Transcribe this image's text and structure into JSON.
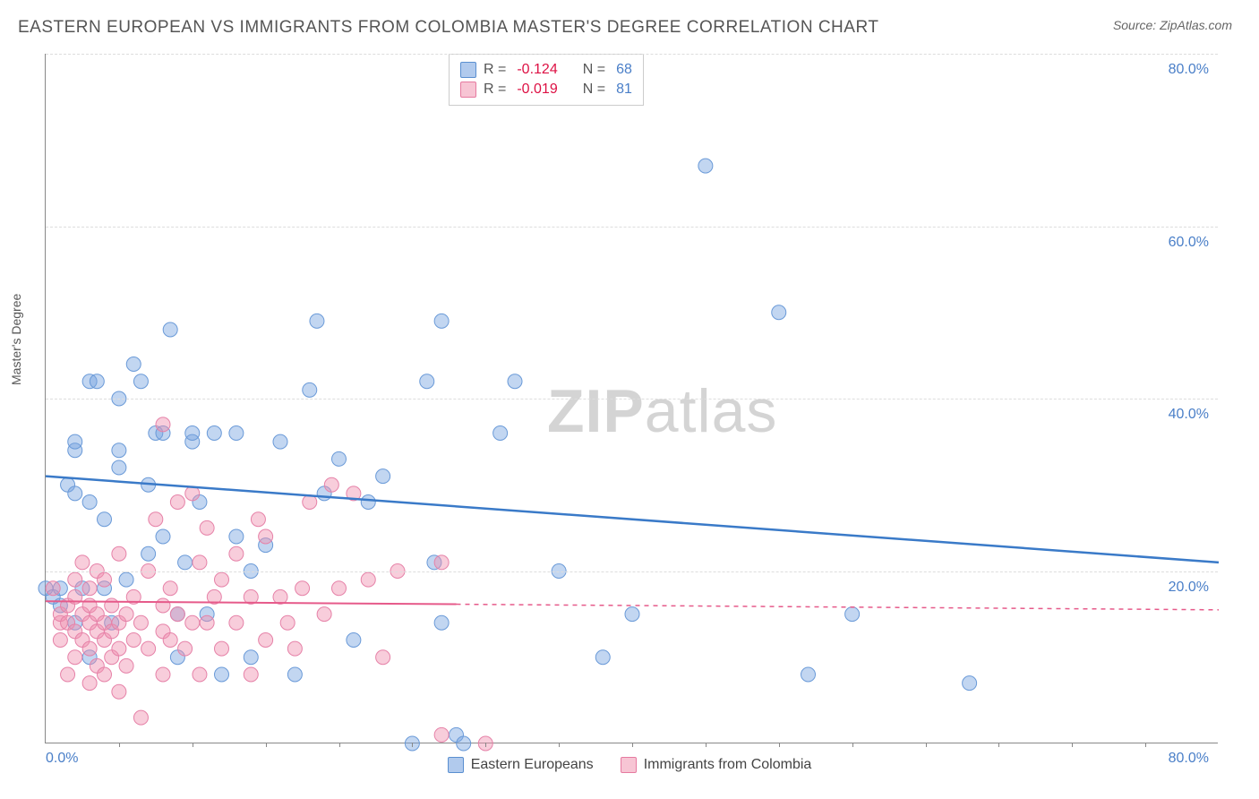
{
  "header": {
    "title": "EASTERN EUROPEAN VS IMMIGRANTS FROM COLOMBIA MASTER'S DEGREE CORRELATION CHART",
    "source_prefix": "Source: ",
    "source": "ZipAtlas.com"
  },
  "chart": {
    "type": "scatter",
    "ylabel": "Master's Degree",
    "xlim": [
      0,
      80
    ],
    "ylim": [
      0,
      80
    ],
    "xtick_labels": {
      "min": "0.0%",
      "max": "80.0%"
    },
    "ytick_labels": [
      "20.0%",
      "40.0%",
      "60.0%",
      "80.0%"
    ],
    "ytick_vals": [
      20,
      40,
      60,
      80
    ],
    "grid_color": "#dddddd",
    "background_color": "#ffffff",
    "axis_color": "#888888",
    "tick_color": "#4a7fc8",
    "watermark": {
      "text_bold": "ZIP",
      "text_rest": "atlas",
      "color": "#aaaaaa",
      "fontsize": 68
    },
    "series": [
      {
        "name": "Eastern Europeans",
        "color_fill": "rgba(120,165,225,0.45)",
        "color_stroke": "#6a9ad8",
        "trend": {
          "x1": 0,
          "y1": 31,
          "x2": 80,
          "y2": 21,
          "color": "#3a7ac8",
          "width": 2.5,
          "dashed": false,
          "solidExtent": 80
        },
        "marker_r": 8,
        "points": [
          [
            0,
            18
          ],
          [
            0.5,
            17
          ],
          [
            1,
            16
          ],
          [
            1,
            18
          ],
          [
            1.5,
            30
          ],
          [
            2,
            14
          ],
          [
            2,
            29
          ],
          [
            2,
            34
          ],
          [
            2,
            35
          ],
          [
            2.5,
            18
          ],
          [
            3,
            10
          ],
          [
            3,
            28
          ],
          [
            3,
            42
          ],
          [
            3.5,
            42
          ],
          [
            4,
            18
          ],
          [
            4,
            26
          ],
          [
            4.5,
            14
          ],
          [
            5,
            32
          ],
          [
            5,
            34
          ],
          [
            5,
            40
          ],
          [
            5.5,
            19
          ],
          [
            6,
            44
          ],
          [
            6.5,
            42
          ],
          [
            7,
            22
          ],
          [
            7,
            30
          ],
          [
            7.5,
            36
          ],
          [
            8,
            24
          ],
          [
            8,
            36
          ],
          [
            8.5,
            48
          ],
          [
            9,
            10
          ],
          [
            9,
            15
          ],
          [
            9.5,
            21
          ],
          [
            10,
            35
          ],
          [
            10,
            36
          ],
          [
            10.5,
            28
          ],
          [
            11,
            15
          ],
          [
            11.5,
            36
          ],
          [
            12,
            8
          ],
          [
            13,
            24
          ],
          [
            13,
            36
          ],
          [
            14,
            10
          ],
          [
            14,
            20
          ],
          [
            15,
            23
          ],
          [
            16,
            35
          ],
          [
            17,
            8
          ],
          [
            18,
            41
          ],
          [
            18.5,
            49
          ],
          [
            19,
            29
          ],
          [
            20,
            33
          ],
          [
            21,
            12
          ],
          [
            22,
            28
          ],
          [
            23,
            31
          ],
          [
            25,
            0
          ],
          [
            26,
            42
          ],
          [
            26.5,
            21
          ],
          [
            27,
            14
          ],
          [
            27,
            49
          ],
          [
            28,
            1
          ],
          [
            28.5,
            0
          ],
          [
            31,
            36
          ],
          [
            32,
            42
          ],
          [
            35,
            20
          ],
          [
            38,
            10
          ],
          [
            40,
            15
          ],
          [
            45,
            67
          ],
          [
            50,
            50
          ],
          [
            52,
            8
          ],
          [
            55,
            15
          ],
          [
            63,
            7
          ]
        ]
      },
      {
        "name": "Immigrants from Colombia",
        "color_fill": "rgba(240,145,175,0.45)",
        "color_stroke": "#e682a8",
        "trend": {
          "x1": 0,
          "y1": 16.5,
          "x2": 80,
          "y2": 15.5,
          "color": "#e65a8a",
          "width": 2,
          "dashed": true,
          "solidExtent": 28
        },
        "marker_r": 8,
        "points": [
          [
            0.5,
            18
          ],
          [
            1,
            12
          ],
          [
            1,
            14
          ],
          [
            1,
            15
          ],
          [
            1.5,
            8
          ],
          [
            1.5,
            14
          ],
          [
            1.5,
            16
          ],
          [
            2,
            10
          ],
          [
            2,
            13
          ],
          [
            2,
            17
          ],
          [
            2,
            19
          ],
          [
            2.5,
            12
          ],
          [
            2.5,
            15
          ],
          [
            2.5,
            21
          ],
          [
            3,
            7
          ],
          [
            3,
            11
          ],
          [
            3,
            14
          ],
          [
            3,
            16
          ],
          [
            3,
            18
          ],
          [
            3.5,
            9
          ],
          [
            3.5,
            13
          ],
          [
            3.5,
            15
          ],
          [
            3.5,
            20
          ],
          [
            4,
            8
          ],
          [
            4,
            12
          ],
          [
            4,
            14
          ],
          [
            4,
            19
          ],
          [
            4.5,
            10
          ],
          [
            4.5,
            13
          ],
          [
            4.5,
            16
          ],
          [
            5,
            6
          ],
          [
            5,
            11
          ],
          [
            5,
            14
          ],
          [
            5,
            22
          ],
          [
            5.5,
            9
          ],
          [
            5.5,
            15
          ],
          [
            6,
            12
          ],
          [
            6,
            17
          ],
          [
            6.5,
            3
          ],
          [
            6.5,
            14
          ],
          [
            7,
            11
          ],
          [
            7,
            20
          ],
          [
            7.5,
            26
          ],
          [
            8,
            8
          ],
          [
            8,
            13
          ],
          [
            8,
            16
          ],
          [
            8,
            37
          ],
          [
            8.5,
            12
          ],
          [
            8.5,
            18
          ],
          [
            9,
            28
          ],
          [
            9,
            15
          ],
          [
            9.5,
            11
          ],
          [
            10,
            14
          ],
          [
            10,
            29
          ],
          [
            10.5,
            8
          ],
          [
            10.5,
            21
          ],
          [
            11,
            14
          ],
          [
            11,
            25
          ],
          [
            11.5,
            17
          ],
          [
            12,
            11
          ],
          [
            12,
            19
          ],
          [
            13,
            14
          ],
          [
            13,
            22
          ],
          [
            14,
            8
          ],
          [
            14,
            17
          ],
          [
            14.5,
            26
          ],
          [
            15,
            12
          ],
          [
            15,
            24
          ],
          [
            16,
            17
          ],
          [
            16.5,
            14
          ],
          [
            17,
            11
          ],
          [
            17.5,
            18
          ],
          [
            18,
            28
          ],
          [
            19,
            15
          ],
          [
            19.5,
            30
          ],
          [
            20,
            18
          ],
          [
            21,
            29
          ],
          [
            22,
            19
          ],
          [
            23,
            10
          ],
          [
            24,
            20
          ],
          [
            27,
            1
          ],
          [
            27,
            21
          ],
          [
            30,
            0
          ]
        ]
      }
    ],
    "stats": [
      {
        "swatch": "blue",
        "R": "-0.124",
        "N": "68"
      },
      {
        "swatch": "pink",
        "R": "-0.019",
        "N": "81"
      }
    ],
    "legend": [
      {
        "swatch": "blue",
        "label": "Eastern Europeans"
      },
      {
        "swatch": "pink",
        "label": "Immigrants from Colombia"
      }
    ]
  },
  "labels": {
    "R": "R =",
    "N": "N ="
  }
}
